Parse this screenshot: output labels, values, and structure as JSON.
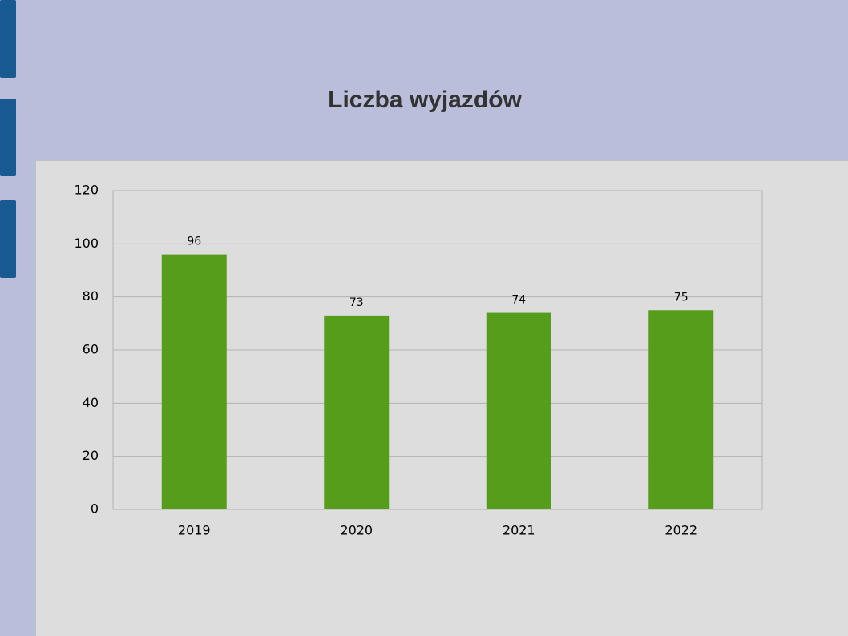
{
  "chart_data": {
    "type": "bar",
    "title": "Liczba wyjazdów",
    "categories": [
      "2019",
      "2020",
      "2021",
      "2022"
    ],
    "values": [
      96,
      73,
      74,
      75
    ],
    "color": "#579d1c",
    "ylim": [
      0,
      120
    ],
    "yticks": [
      0,
      20,
      40,
      60,
      80,
      100,
      120
    ],
    "grid": true,
    "data_labels": true
  }
}
